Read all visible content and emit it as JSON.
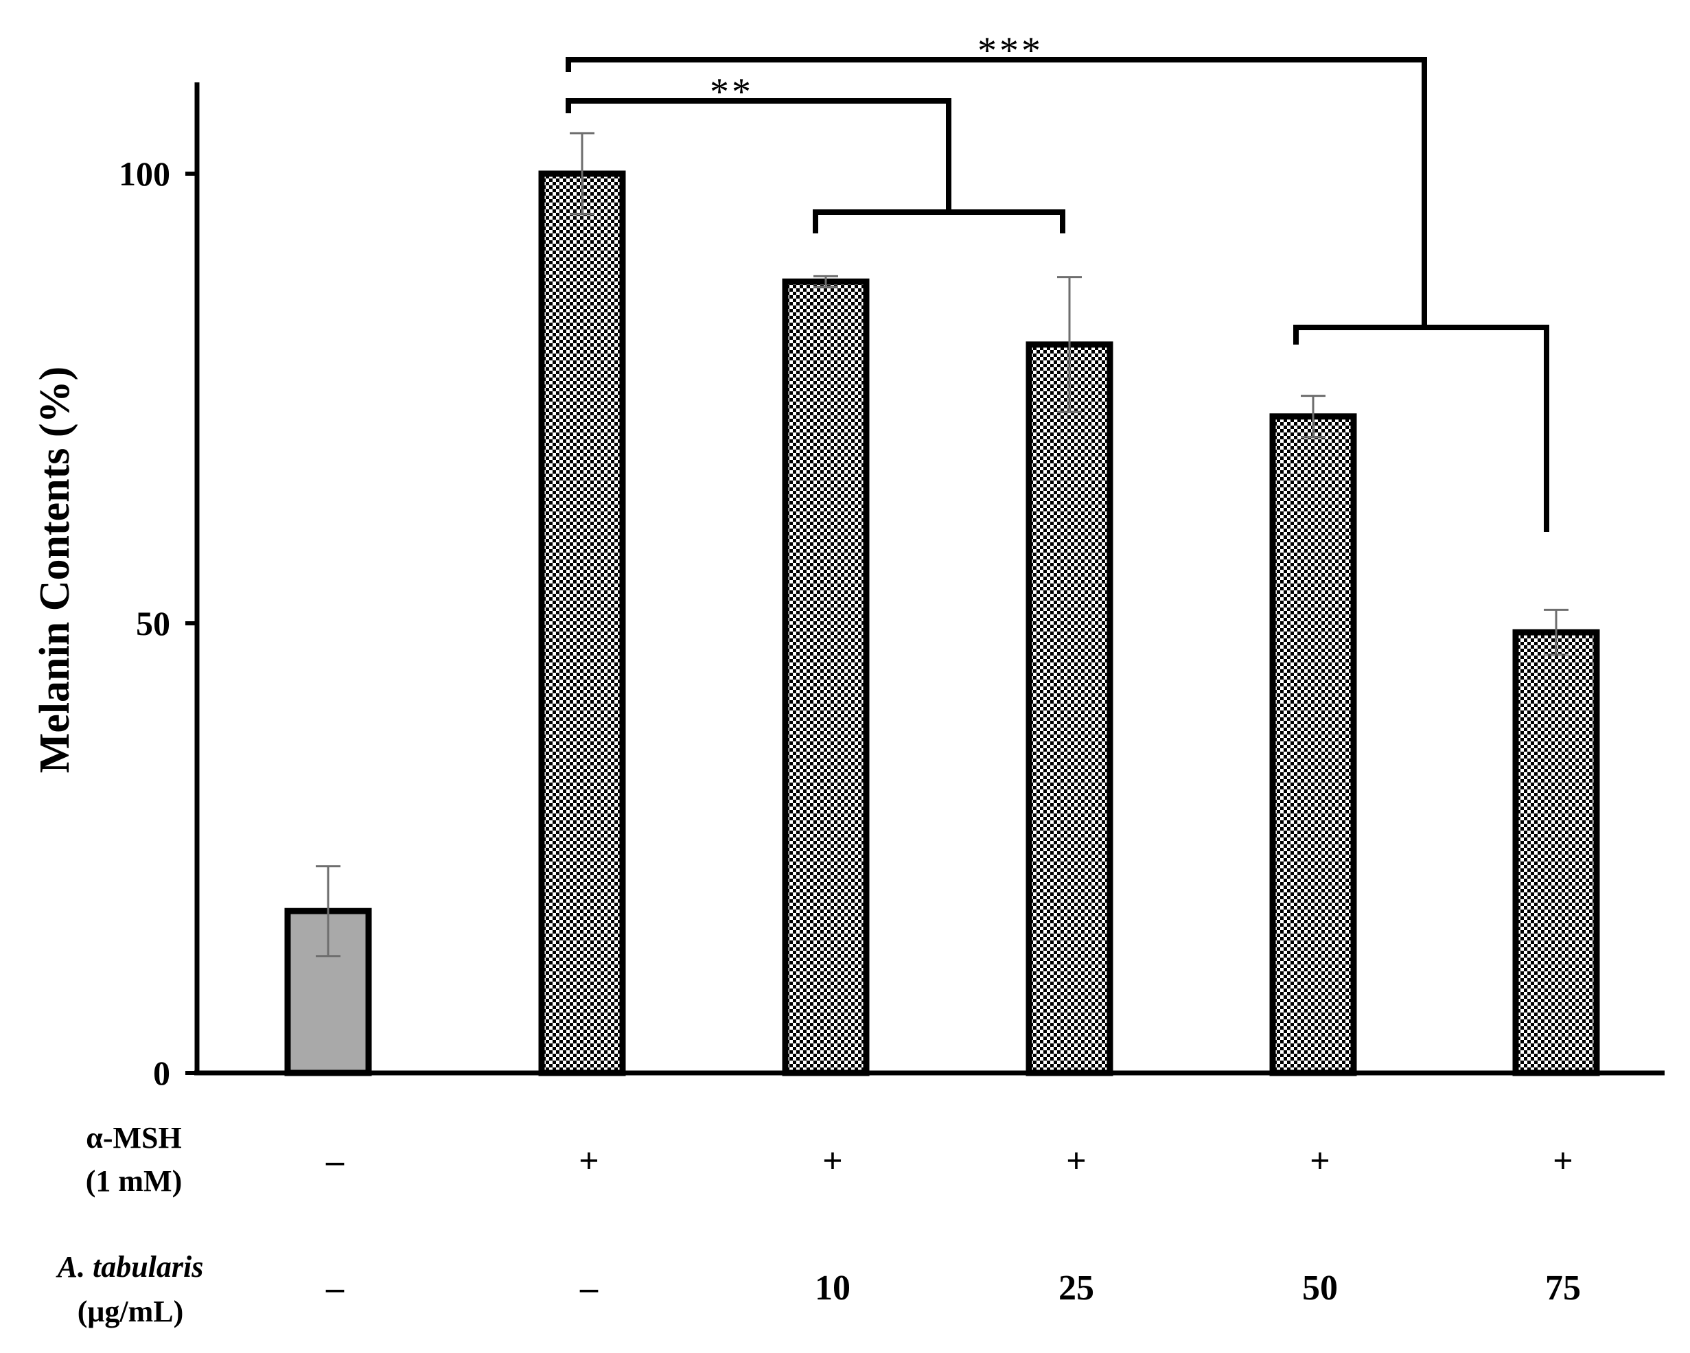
{
  "chart_data": {
    "type": "bar",
    "ylabel": "Melanin Contents (%)",
    "ylim": [
      0,
      100
    ],
    "yticks": [
      0,
      50,
      100
    ],
    "values": [
      18,
      100,
      88,
      81,
      73,
      49
    ],
    "errors": [
      5,
      4.5,
      0.6,
      7.5,
      2.3,
      2.5
    ],
    "bar_fills": [
      "solid-gray",
      "checker",
      "checker",
      "checker",
      "checker",
      "checker"
    ],
    "colors": {
      "solid_bar": "#a9a9a9",
      "checker_dark": "#000000",
      "checker_light": "#ffffff",
      "error_bar": "#6e6e6e"
    },
    "conditions": {
      "row1_label_line1": "α-MSH",
      "row1_label_line2": "(1 mM)",
      "row1_values": [
        "–",
        "+",
        "+",
        "+",
        "+",
        "+"
      ],
      "row2_label_line1": "A. tabularis",
      "row2_label_line2": "(μg/mL)",
      "row2_values": [
        "–",
        "–",
        "10",
        "25",
        "50",
        "75"
      ]
    },
    "significance": [
      {
        "label": "**",
        "from": 1,
        "to_group": [
          2,
          3
        ]
      },
      {
        "label": "***",
        "from": 1,
        "to_group": [
          4,
          5
        ]
      }
    ]
  }
}
